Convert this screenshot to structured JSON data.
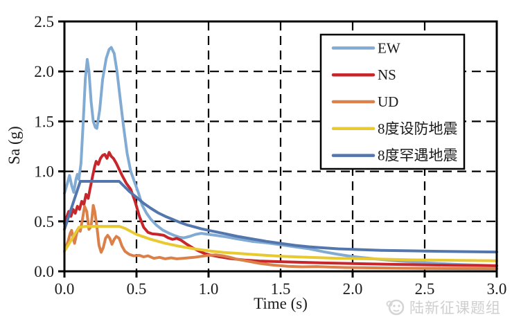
{
  "page": {
    "background": "#ffffff"
  },
  "watermark": {
    "text": "陆新征课题组",
    "icon": "smiley-logo-icon",
    "color": "#cfcfcf"
  },
  "chart_data": {
    "type": "line",
    "title": "",
    "xlabel": "Time (s)",
    "ylabel": "Sa (g)",
    "xlim": [
      0,
      3.0
    ],
    "ylim": [
      0,
      2.5
    ],
    "x_ticks": [
      "0.0",
      "0.5",
      "1.0",
      "1.5",
      "2.0",
      "2.5",
      "3.0"
    ],
    "y_ticks": [
      "0.0",
      "0.5",
      "1.0",
      "1.5",
      "2.0",
      "2.5"
    ],
    "grid": "dashed",
    "grid_color": "#000000",
    "axis_color": "#000000",
    "legend_position": "upper right",
    "series": [
      {
        "name": "EW",
        "color": "#82ABD3",
        "points": [
          [
            0,
            0.78
          ],
          [
            0.02,
            0.88
          ],
          [
            0.035,
            0.96
          ],
          [
            0.05,
            0.86
          ],
          [
            0.065,
            0.79
          ],
          [
            0.08,
            0.92
          ],
          [
            0.09,
            0.97
          ],
          [
            0.1,
            0.92
          ],
          [
            0.115,
            1.08
          ],
          [
            0.13,
            1.48
          ],
          [
            0.145,
            1.93
          ],
          [
            0.158,
            2.12
          ],
          [
            0.17,
            2.0
          ],
          [
            0.185,
            1.7
          ],
          [
            0.2,
            1.5
          ],
          [
            0.215,
            1.44
          ],
          [
            0.225,
            1.43
          ],
          [
            0.245,
            1.62
          ],
          [
            0.265,
            1.92
          ],
          [
            0.29,
            2.13
          ],
          [
            0.31,
            2.22
          ],
          [
            0.325,
            2.24
          ],
          [
            0.345,
            2.18
          ],
          [
            0.365,
            2.0
          ],
          [
            0.385,
            1.75
          ],
          [
            0.41,
            1.45
          ],
          [
            0.435,
            1.18
          ],
          [
            0.46,
            1.0
          ],
          [
            0.49,
            0.88
          ],
          [
            0.515,
            0.78
          ],
          [
            0.54,
            0.66
          ],
          [
            0.57,
            0.58
          ],
          [
            0.6,
            0.52
          ],
          [
            0.64,
            0.46
          ],
          [
            0.68,
            0.415
          ],
          [
            0.72,
            0.385
          ],
          [
            0.76,
            0.36
          ],
          [
            0.8,
            0.34
          ],
          [
            0.83,
            0.335
          ],
          [
            0.87,
            0.35
          ],
          [
            0.91,
            0.37
          ],
          [
            0.95,
            0.38
          ],
          [
            1.0,
            0.37
          ],
          [
            1.05,
            0.36
          ],
          [
            1.12,
            0.345
          ],
          [
            1.2,
            0.325
          ],
          [
            1.3,
            0.3
          ],
          [
            1.4,
            0.285
          ],
          [
            1.5,
            0.265
          ],
          [
            1.6,
            0.245
          ],
          [
            1.7,
            0.225
          ],
          [
            1.8,
            0.195
          ],
          [
            1.9,
            0.17
          ],
          [
            2.0,
            0.148
          ],
          [
            2.1,
            0.132
          ],
          [
            2.2,
            0.118
          ],
          [
            2.32,
            0.103
          ],
          [
            2.45,
            0.09
          ],
          [
            2.6,
            0.078
          ],
          [
            2.75,
            0.068
          ],
          [
            2.9,
            0.06
          ],
          [
            3.0,
            0.055
          ]
        ]
      },
      {
        "name": "NS",
        "color": "#C7262B",
        "points": [
          [
            0,
            0.48
          ],
          [
            0.015,
            0.54
          ],
          [
            0.03,
            0.6
          ],
          [
            0.045,
            0.55
          ],
          [
            0.06,
            0.62
          ],
          [
            0.075,
            0.58
          ],
          [
            0.09,
            0.65
          ],
          [
            0.105,
            0.62
          ],
          [
            0.12,
            0.7
          ],
          [
            0.135,
            0.67
          ],
          [
            0.15,
            0.77
          ],
          [
            0.165,
            0.73
          ],
          [
            0.18,
            0.84
          ],
          [
            0.195,
            0.95
          ],
          [
            0.21,
            1.05
          ],
          [
            0.22,
            1.1
          ],
          [
            0.235,
            1.07
          ],
          [
            0.25,
            1.13
          ],
          [
            0.265,
            1.16
          ],
          [
            0.28,
            1.17
          ],
          [
            0.295,
            1.13
          ],
          [
            0.31,
            1.19
          ],
          [
            0.325,
            1.15
          ],
          [
            0.34,
            1.13
          ],
          [
            0.36,
            1.08
          ],
          [
            0.38,
            1.02
          ],
          [
            0.4,
            0.96
          ],
          [
            0.43,
            0.88
          ],
          [
            0.46,
            0.82
          ],
          [
            0.49,
            0.7
          ],
          [
            0.52,
            0.55
          ],
          [
            0.55,
            0.44
          ],
          [
            0.58,
            0.39
          ],
          [
            0.61,
            0.375
          ],
          [
            0.65,
            0.37
          ],
          [
            0.69,
            0.36
          ],
          [
            0.72,
            0.335
          ],
          [
            0.75,
            0.32
          ],
          [
            0.78,
            0.33
          ],
          [
            0.81,
            0.31
          ],
          [
            0.85,
            0.27
          ],
          [
            0.89,
            0.235
          ],
          [
            0.93,
            0.205
          ],
          [
            0.97,
            0.18
          ],
          [
            1.02,
            0.16
          ],
          [
            1.08,
            0.145
          ],
          [
            1.15,
            0.128
          ],
          [
            1.25,
            0.112
          ],
          [
            1.35,
            0.103
          ],
          [
            1.5,
            0.096
          ],
          [
            1.65,
            0.09
          ],
          [
            1.8,
            0.084
          ],
          [
            2.0,
            0.078
          ],
          [
            2.2,
            0.072
          ],
          [
            2.45,
            0.066
          ],
          [
            2.7,
            0.061
          ],
          [
            3.0,
            0.056
          ]
        ]
      },
      {
        "name": "UD",
        "color": "#DC8049",
        "points": [
          [
            0,
            0.2
          ],
          [
            0.025,
            0.3
          ],
          [
            0.04,
            0.38
          ],
          [
            0.05,
            0.41
          ],
          [
            0.06,
            0.33
          ],
          [
            0.07,
            0.28
          ],
          [
            0.085,
            0.38
          ],
          [
            0.1,
            0.44
          ],
          [
            0.11,
            0.4
          ],
          [
            0.125,
            0.52
          ],
          [
            0.14,
            0.65
          ],
          [
            0.155,
            0.6
          ],
          [
            0.17,
            0.42
          ],
          [
            0.185,
            0.45
          ],
          [
            0.2,
            0.66
          ],
          [
            0.21,
            0.6
          ],
          [
            0.225,
            0.45
          ],
          [
            0.24,
            0.26
          ],
          [
            0.255,
            0.19
          ],
          [
            0.27,
            0.24
          ],
          [
            0.285,
            0.33
          ],
          [
            0.3,
            0.36
          ],
          [
            0.315,
            0.33
          ],
          [
            0.33,
            0.27
          ],
          [
            0.345,
            0.32
          ],
          [
            0.36,
            0.35
          ],
          [
            0.38,
            0.33
          ],
          [
            0.4,
            0.25
          ],
          [
            0.42,
            0.2
          ],
          [
            0.45,
            0.17
          ],
          [
            0.48,
            0.155
          ],
          [
            0.52,
            0.16
          ],
          [
            0.55,
            0.145
          ],
          [
            0.58,
            0.155
          ],
          [
            0.62,
            0.13
          ],
          [
            0.66,
            0.14
          ],
          [
            0.7,
            0.125
          ],
          [
            0.74,
            0.135
          ],
          [
            0.78,
            0.125
          ],
          [
            0.82,
            0.13
          ],
          [
            0.86,
            0.135
          ],
          [
            0.9,
            0.14
          ],
          [
            0.95,
            0.15
          ],
          [
            1.0,
            0.16
          ],
          [
            1.05,
            0.165
          ],
          [
            1.1,
            0.155
          ],
          [
            1.15,
            0.14
          ],
          [
            1.2,
            0.12
          ],
          [
            1.28,
            0.1
          ],
          [
            1.35,
            0.08
          ],
          [
            1.45,
            0.062
          ],
          [
            1.55,
            0.05
          ],
          [
            1.65,
            0.045
          ],
          [
            1.75,
            0.048
          ],
          [
            1.85,
            0.042
          ],
          [
            1.95,
            0.038
          ],
          [
            2.1,
            0.035
          ],
          [
            2.3,
            0.032
          ],
          [
            2.5,
            0.03
          ],
          [
            2.7,
            0.028
          ],
          [
            3.0,
            0.027
          ]
        ]
      },
      {
        "name": "8度设防地震",
        "color": "#E9C932",
        "points": [
          [
            0,
            0.2
          ],
          [
            0.05,
            0.32
          ],
          [
            0.1,
            0.44
          ],
          [
            0.15,
            0.45
          ],
          [
            0.38,
            0.45
          ],
          [
            0.42,
            0.43
          ],
          [
            0.5,
            0.37
          ],
          [
            0.6,
            0.32
          ],
          [
            0.7,
            0.28
          ],
          [
            0.8,
            0.25
          ],
          [
            0.9,
            0.225
          ],
          [
            1.0,
            0.205
          ],
          [
            1.1,
            0.19
          ],
          [
            1.2,
            0.18
          ],
          [
            1.35,
            0.165
          ],
          [
            1.5,
            0.15
          ],
          [
            1.7,
            0.14
          ],
          [
            1.9,
            0.13
          ],
          [
            2.1,
            0.125
          ],
          [
            2.4,
            0.115
          ],
          [
            2.7,
            0.11
          ],
          [
            3.0,
            0.105
          ]
        ]
      },
      {
        "name": "8度罕遇地震",
        "color": "#5376AD",
        "points": [
          [
            0,
            0.42
          ],
          [
            0.055,
            0.66
          ],
          [
            0.11,
            0.9
          ],
          [
            0.38,
            0.9
          ],
          [
            0.45,
            0.8
          ],
          [
            0.5,
            0.74
          ],
          [
            0.55,
            0.68
          ],
          [
            0.6,
            0.63
          ],
          [
            0.65,
            0.585
          ],
          [
            0.7,
            0.55
          ],
          [
            0.75,
            0.52
          ],
          [
            0.8,
            0.49
          ],
          [
            0.85,
            0.465
          ],
          [
            0.9,
            0.445
          ],
          [
            0.95,
            0.425
          ],
          [
            1.0,
            0.41
          ],
          [
            1.1,
            0.38
          ],
          [
            1.2,
            0.35
          ],
          [
            1.3,
            0.325
          ],
          [
            1.4,
            0.3
          ],
          [
            1.5,
            0.28
          ],
          [
            1.6,
            0.26
          ],
          [
            1.7,
            0.245
          ],
          [
            1.8,
            0.235
          ],
          [
            1.9,
            0.225
          ],
          [
            2.0,
            0.22
          ],
          [
            2.2,
            0.21
          ],
          [
            2.4,
            0.205
          ],
          [
            2.6,
            0.2
          ],
          [
            2.8,
            0.197
          ],
          [
            3.0,
            0.193
          ]
        ]
      }
    ]
  }
}
